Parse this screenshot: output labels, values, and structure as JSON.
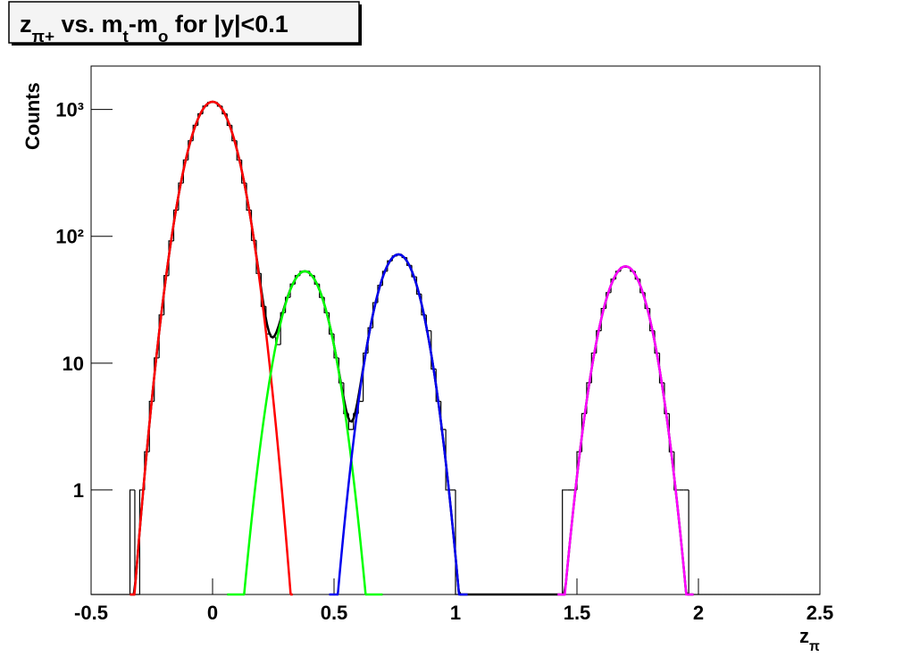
{
  "chart_data": {
    "type": "histogram",
    "title": [
      {
        "text": "z"
      },
      {
        "text": "π+",
        "sub": true
      },
      {
        "text": " vs. m"
      },
      {
        "text": "t",
        "sub": true
      },
      {
        "text": "-m"
      },
      {
        "text": "o",
        "sub": true
      },
      {
        "text": " for |y|<0.1"
      }
    ],
    "x_label": [
      {
        "text": "z"
      },
      {
        "text": "π",
        "sub": true
      }
    ],
    "y_label": "Counts",
    "log_y": true,
    "color": "#000000",
    "xlim": [
      -0.5,
      2.5
    ],
    "xticks": [
      -0.5,
      0,
      0.5,
      1,
      1.5,
      2,
      2.5
    ],
    "ylim": [
      0.15,
      2200
    ],
    "yticks": [
      1,
      10,
      {
        "value": 100,
        "label": "10²"
      },
      {
        "value": 1000,
        "label": "10³"
      }
    ],
    "bins": [
      -0.5,
      -0.48,
      -0.46,
      -0.44,
      -0.42,
      -0.4,
      -0.38,
      -0.36,
      -0.34,
      -0.32,
      -0.3,
      -0.28,
      -0.26,
      -0.24,
      -0.22,
      -0.2,
      -0.18,
      -0.16,
      -0.14,
      -0.12,
      -0.1,
      -0.08,
      -0.06,
      -0.04,
      -0.02,
      0,
      0.02,
      0.04,
      0.06,
      0.08,
      0.1,
      0.12,
      0.14,
      0.16,
      0.18,
      0.2,
      0.22,
      0.24,
      0.26,
      0.28,
      0.3,
      0.32,
      0.34,
      0.36,
      0.38,
      0.4,
      0.42,
      0.44,
      0.46,
      0.48,
      0.5,
      0.52,
      0.54,
      0.56,
      0.58,
      0.6,
      0.62,
      0.64,
      0.66,
      0.68,
      0.7,
      0.72,
      0.74,
      0.76,
      0.78,
      0.8,
      0.82,
      0.84,
      0.86,
      0.88,
      0.9,
      0.92,
      0.94,
      0.96,
      0.98,
      1,
      1.02,
      1.04,
      1.06,
      1.08,
      1.1,
      1.12,
      1.14,
      1.16,
      1.18,
      1.2,
      1.22,
      1.24,
      1.26,
      1.28,
      1.3,
      1.32,
      1.34,
      1.36,
      1.38,
      1.4,
      1.42,
      1.44,
      1.46,
      1.48,
      1.5,
      1.52,
      1.54,
      1.56,
      1.58,
      1.6,
      1.62,
      1.64,
      1.66,
      1.68,
      1.7,
      1.72,
      1.74,
      1.76,
      1.78,
      1.8,
      1.82,
      1.84,
      1.86,
      1.88,
      1.9,
      1.92,
      1.94,
      1.96,
      1.98,
      2,
      2.02,
      2.04,
      2.06,
      2.08,
      2.1,
      2.12,
      2.14,
      2.16,
      2.18,
      2.2,
      2.22,
      2.24,
      2.26,
      2.28,
      2.3,
      2.32,
      2.34,
      2.36,
      2.38,
      2.4,
      2.42,
      2.44,
      2.46,
      2.48,
      2.5
    ],
    "counts": [
      0,
      0,
      0,
      0,
      0,
      0,
      0,
      0,
      1,
      0,
      1,
      2,
      5,
      11,
      24,
      49,
      92,
      161,
      263,
      400,
      567,
      750,
      925,
      1063,
      1140,
      1140,
      1063,
      925,
      750,
      567,
      400,
      263,
      161,
      93,
      51,
      28,
      17,
      16,
      14,
      25,
      33,
      42,
      49,
      53,
      53,
      49,
      42,
      33,
      25,
      17,
      11,
      7,
      4,
      3,
      4,
      5,
      12,
      19,
      30,
      41,
      53,
      64,
      70,
      72,
      68,
      59,
      48,
      35,
      24,
      18,
      9,
      5,
      3,
      1,
      1,
      0,
      0,
      0,
      0,
      0,
      0,
      0,
      0,
      0,
      0,
      0,
      0,
      0,
      0,
      0,
      0,
      0,
      0,
      0,
      0,
      0,
      0,
      1,
      1,
      1,
      2,
      4,
      7,
      12,
      18,
      27,
      36,
      46,
      53,
      57,
      57,
      53,
      46,
      36,
      27,
      18,
      12,
      7,
      4,
      2,
      1,
      1,
      1,
      0,
      0,
      0,
      0,
      0,
      0,
      0,
      0,
      0,
      0,
      0,
      0,
      0,
      0,
      0,
      0,
      0,
      0,
      0,
      0,
      0,
      0,
      0,
      0,
      0,
      0,
      0
    ],
    "total_fit_color": "#000000",
    "fits": [
      {
        "color": "#ff0000",
        "amplitude": 1150,
        "mean": 0,
        "sigma": 0.076,
        "range": [
          -0.34,
          0.33
        ]
      },
      {
        "color": "#00ff00",
        "amplitude": 53,
        "mean": 0.38,
        "sigma": 0.073,
        "range": [
          0.06,
          0.7
        ]
      },
      {
        "color": "#0000ee",
        "amplitude": 72,
        "mean": 0.765,
        "sigma": 0.071,
        "range": [
          0.48,
          1.05
        ]
      },
      {
        "color": "#ff00ff",
        "amplitude": 58,
        "mean": 1.7,
        "sigma": 0.0724,
        "range": [
          1.42,
          1.98
        ]
      }
    ]
  }
}
